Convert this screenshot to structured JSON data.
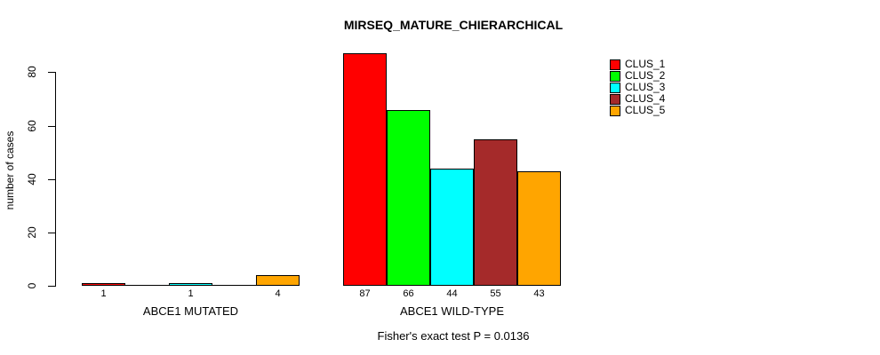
{
  "chart_data": {
    "type": "bar",
    "title": "MIRSEQ_MATURE_CHIERARCHICAL",
    "xlabel": "",
    "ylabel": "number of cases",
    "ylim": [
      0,
      88
    ],
    "yticks": [
      0,
      20,
      40,
      60,
      80
    ],
    "grid": false,
    "legend_position": "top-right",
    "categories": [
      "ABCE1 MUTATED",
      "ABCE1 WILD-TYPE"
    ],
    "series": [
      {
        "name": "CLUS_1",
        "color": "#FF0000",
        "values": [
          1,
          87
        ]
      },
      {
        "name": "CLUS_2",
        "color": "#00FF00",
        "values": [
          0,
          66
        ]
      },
      {
        "name": "CLUS_3",
        "color": "#00FFFF",
        "values": [
          1,
          44
        ]
      },
      {
        "name": "CLUS_4",
        "color": "#A52A2A",
        "values": [
          0,
          55
        ]
      },
      {
        "name": "CLUS_5",
        "color": "#FFA500",
        "values": [
          4,
          43
        ]
      }
    ],
    "bar_value_labels": [
      [
        "1",
        "",
        "1",
        "",
        "4"
      ],
      [
        "87",
        "66",
        "44",
        "55",
        "43"
      ]
    ],
    "footer": "Fisher's exact test P = 0.0136"
  },
  "colors": {
    "axis": "#000000",
    "background": "#FFFFFF",
    "text": "#000000"
  }
}
